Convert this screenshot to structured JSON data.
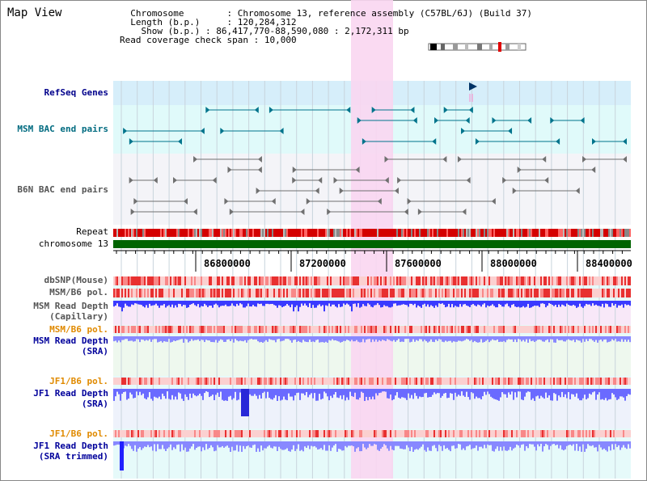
{
  "title": "Map View",
  "info": {
    "chromosome_label": "Chromosome",
    "chromosome_value": "Chromosome 13, reference assembly (C57BL/6J) (Build 37)",
    "length_label": "Length (b.p.)",
    "length_value": "120,284,312",
    "show_label": "Show (b.p.)",
    "show_value": "86,417,770-88,590,080 : 2,172,311 bp",
    "coverage_label": "Read coverage check span",
    "coverage_value": "10,000"
  },
  "tracks": {
    "refseq": "RefSeq Genes",
    "msm_bac": "MSM BAC end pairs",
    "b6n_bac": "B6N BAC end pairs",
    "repeat": "Repeat",
    "chromosome": "chromosome 13",
    "dbsnp": "dbSNP(Mouse)",
    "msm_b6_pol": "MSM/B6 pol.",
    "msm_depth_cap_1": "MSM Read Depth",
    "msm_depth_cap_2": "(Capillary)",
    "msm_b6_pol_sra": "MSM/B6 pol.",
    "msm_depth_sra_1": "MSM Read Depth",
    "msm_depth_sra_2": "(SRA)",
    "jf1_pol_1": "JF1/B6 pol.",
    "jf1_depth_1": "JF1 Read Depth",
    "jf1_depth_1b": "(SRA)",
    "jf1_pol_2": "JF1/B6 pol.",
    "jf1_depth_2": "JF1 Read Depth",
    "jf1_depth_2b": "(SRA trimmed)"
  },
  "axis": {
    "ticks": [
      "86800000",
      "87200000",
      "87600000",
      "88000000",
      "88400000"
    ]
  },
  "colors": {
    "refseq_label": "#00008b",
    "bac_msm_label": "#006b80",
    "orange_label": "#e08a00",
    "blue_label": "#00009b",
    "highlight": "#f9d6f1",
    "chromosome_bar": "#006400",
    "depth_bar": "#5a5aff"
  }
}
